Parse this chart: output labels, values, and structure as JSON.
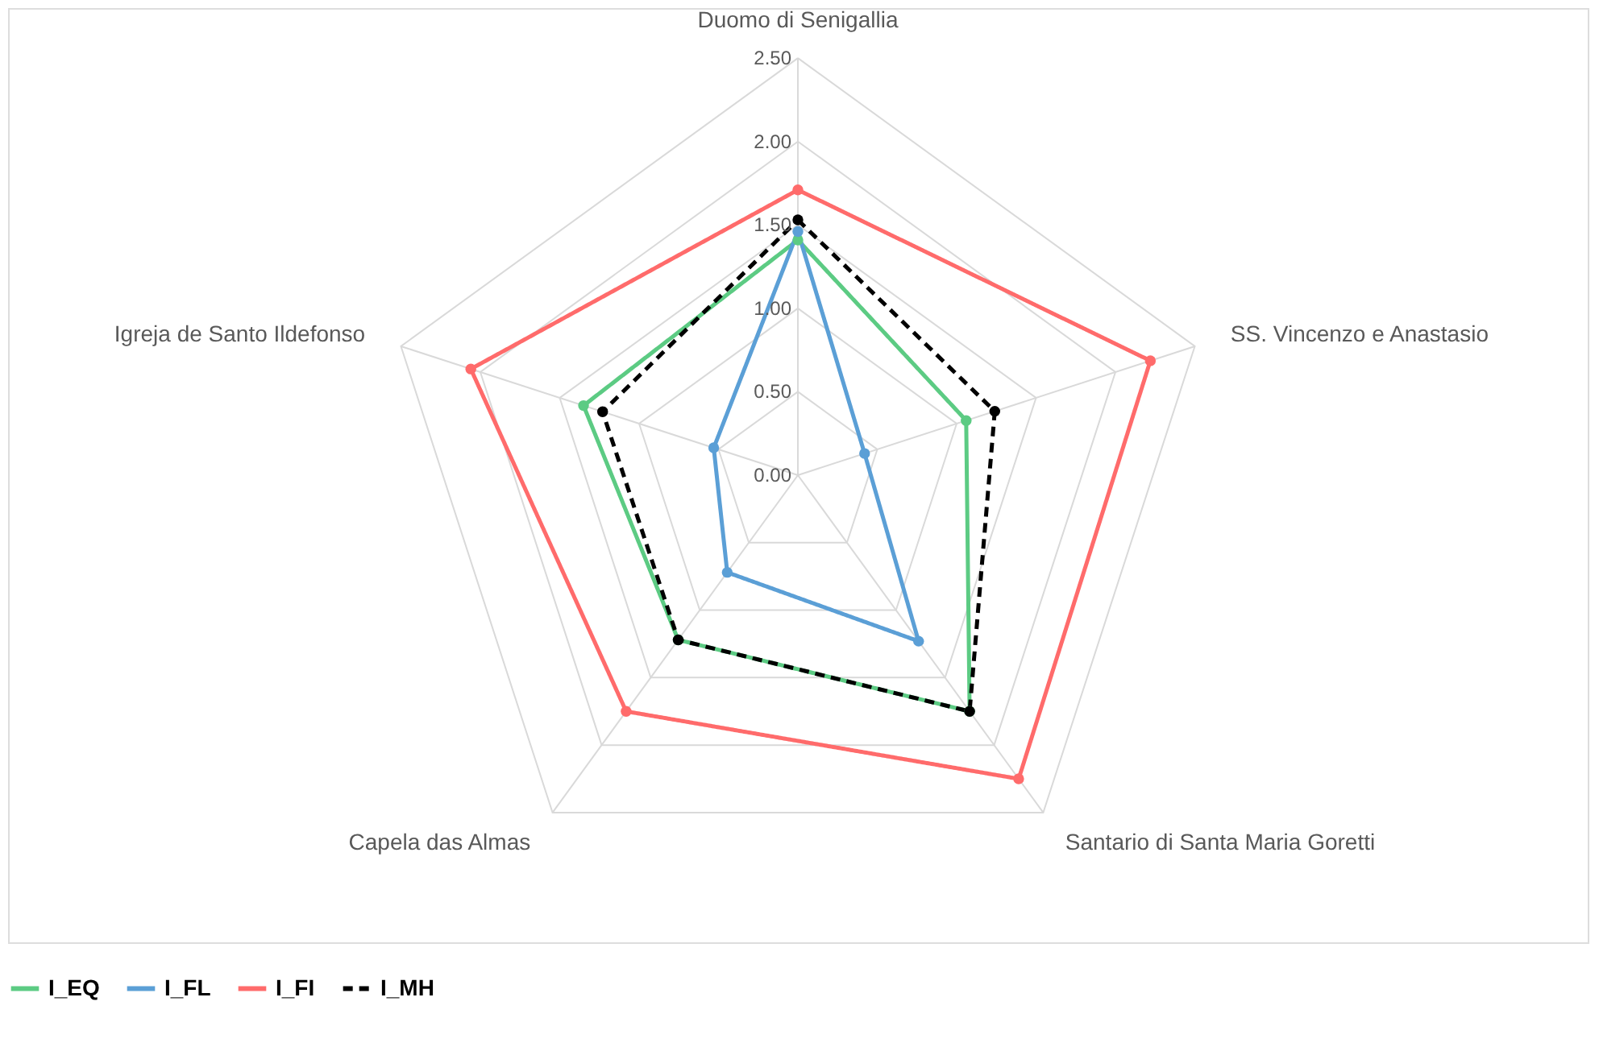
{
  "chart_data": {
    "type": "radar",
    "categories": [
      "Duomo di Senigallia",
      "SS. Vincenzo e Anastasio",
      "Santario di Santa Maria Goretti",
      "Capela das Almas",
      "Igreja de Santo Ildefonso"
    ],
    "series": [
      {
        "name": "I_EQ",
        "color": "#5ccb83",
        "values": [
          1.41,
          1.06,
          1.75,
          1.22,
          1.35
        ]
      },
      {
        "name": "I_FL",
        "color": "#5b9fd6",
        "values": [
          1.46,
          0.42,
          1.23,
          0.72,
          0.53
        ]
      },
      {
        "name": "I_FI",
        "color": "#ff6b6b",
        "values": [
          1.71,
          2.22,
          2.25,
          1.75,
          2.06
        ]
      },
      {
        "name": "I_MH",
        "color": "#000000",
        "values": [
          1.53,
          1.24,
          1.75,
          1.22,
          1.23
        ],
        "line_style": "dashed"
      }
    ],
    "ylim": [
      0,
      2.5
    ],
    "yticks": [
      {
        "value": 0,
        "label": "0.00"
      },
      {
        "value": 0.5,
        "label": "0.50"
      },
      {
        "value": 1,
        "label": "1.00"
      },
      {
        "value": 1.5,
        "label": "1.50"
      },
      {
        "value": 2,
        "label": "2.00"
      },
      {
        "value": 2.5,
        "label": "2.50"
      }
    ],
    "grid": true,
    "legend": "bottom",
    "marker": "circle"
  }
}
